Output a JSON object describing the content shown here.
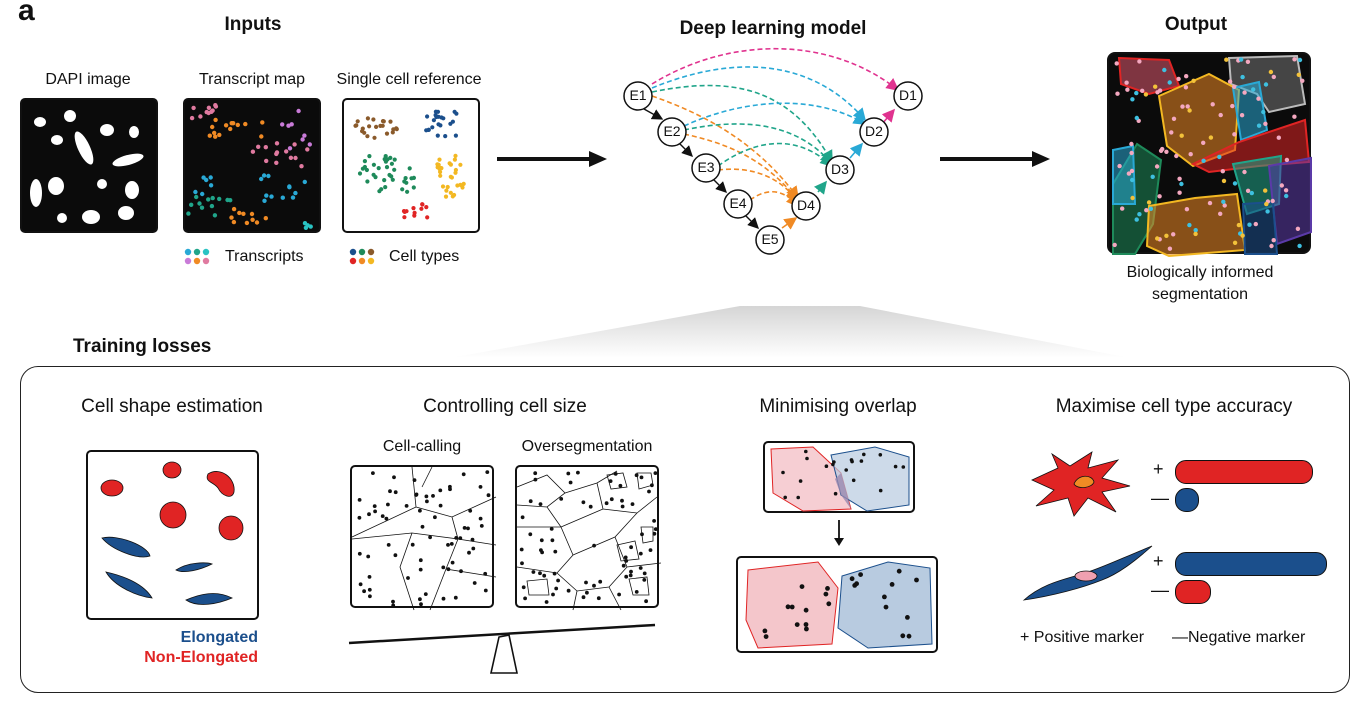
{
  "panel_letter": "a",
  "inputs": {
    "heading": "Inputs",
    "dapi_label": "DAPI image",
    "transcript_label": "Transcript map",
    "reference_label": "Single cell reference",
    "legend_transcripts": "Transcripts",
    "legend_cell_types": "Cell types"
  },
  "model": {
    "heading": "Deep learning model",
    "encoder_nodes": [
      "E1",
      "E2",
      "E3",
      "E4",
      "E5"
    ],
    "decoder_nodes": [
      "D4",
      "D3",
      "D2",
      "D1"
    ]
  },
  "output": {
    "heading": "Output",
    "caption_line1": "Biologically informed",
    "caption_line2": "segmentation"
  },
  "losses": {
    "heading": "Training losses",
    "shape": {
      "title": "Cell shape estimation",
      "legend_elongated": "Elongated",
      "legend_non_elongated": "Non-Elongated"
    },
    "size": {
      "title": "Controlling cell size",
      "left_label": "Cell-calling",
      "right_label": "Oversegmentation"
    },
    "overlap": {
      "title": "Minimising overlap"
    },
    "accuracy": {
      "title": "Maximise cell type accuracy",
      "plus": "+",
      "minus": "—",
      "legend_positive": "+ Positive marker",
      "legend_negative": "—Negative marker"
    }
  },
  "colors": {
    "elongated": "#1b4f8c",
    "non_elongated": "#e02424",
    "overlap_red": "#f4c6cb",
    "overlap_blue": "#b8cbe0",
    "skip_magenta": "#e0338f",
    "skip_cyan": "#29a9d6",
    "skip_teal": "#20a58a",
    "skip_orange": "#f08a24"
  }
}
